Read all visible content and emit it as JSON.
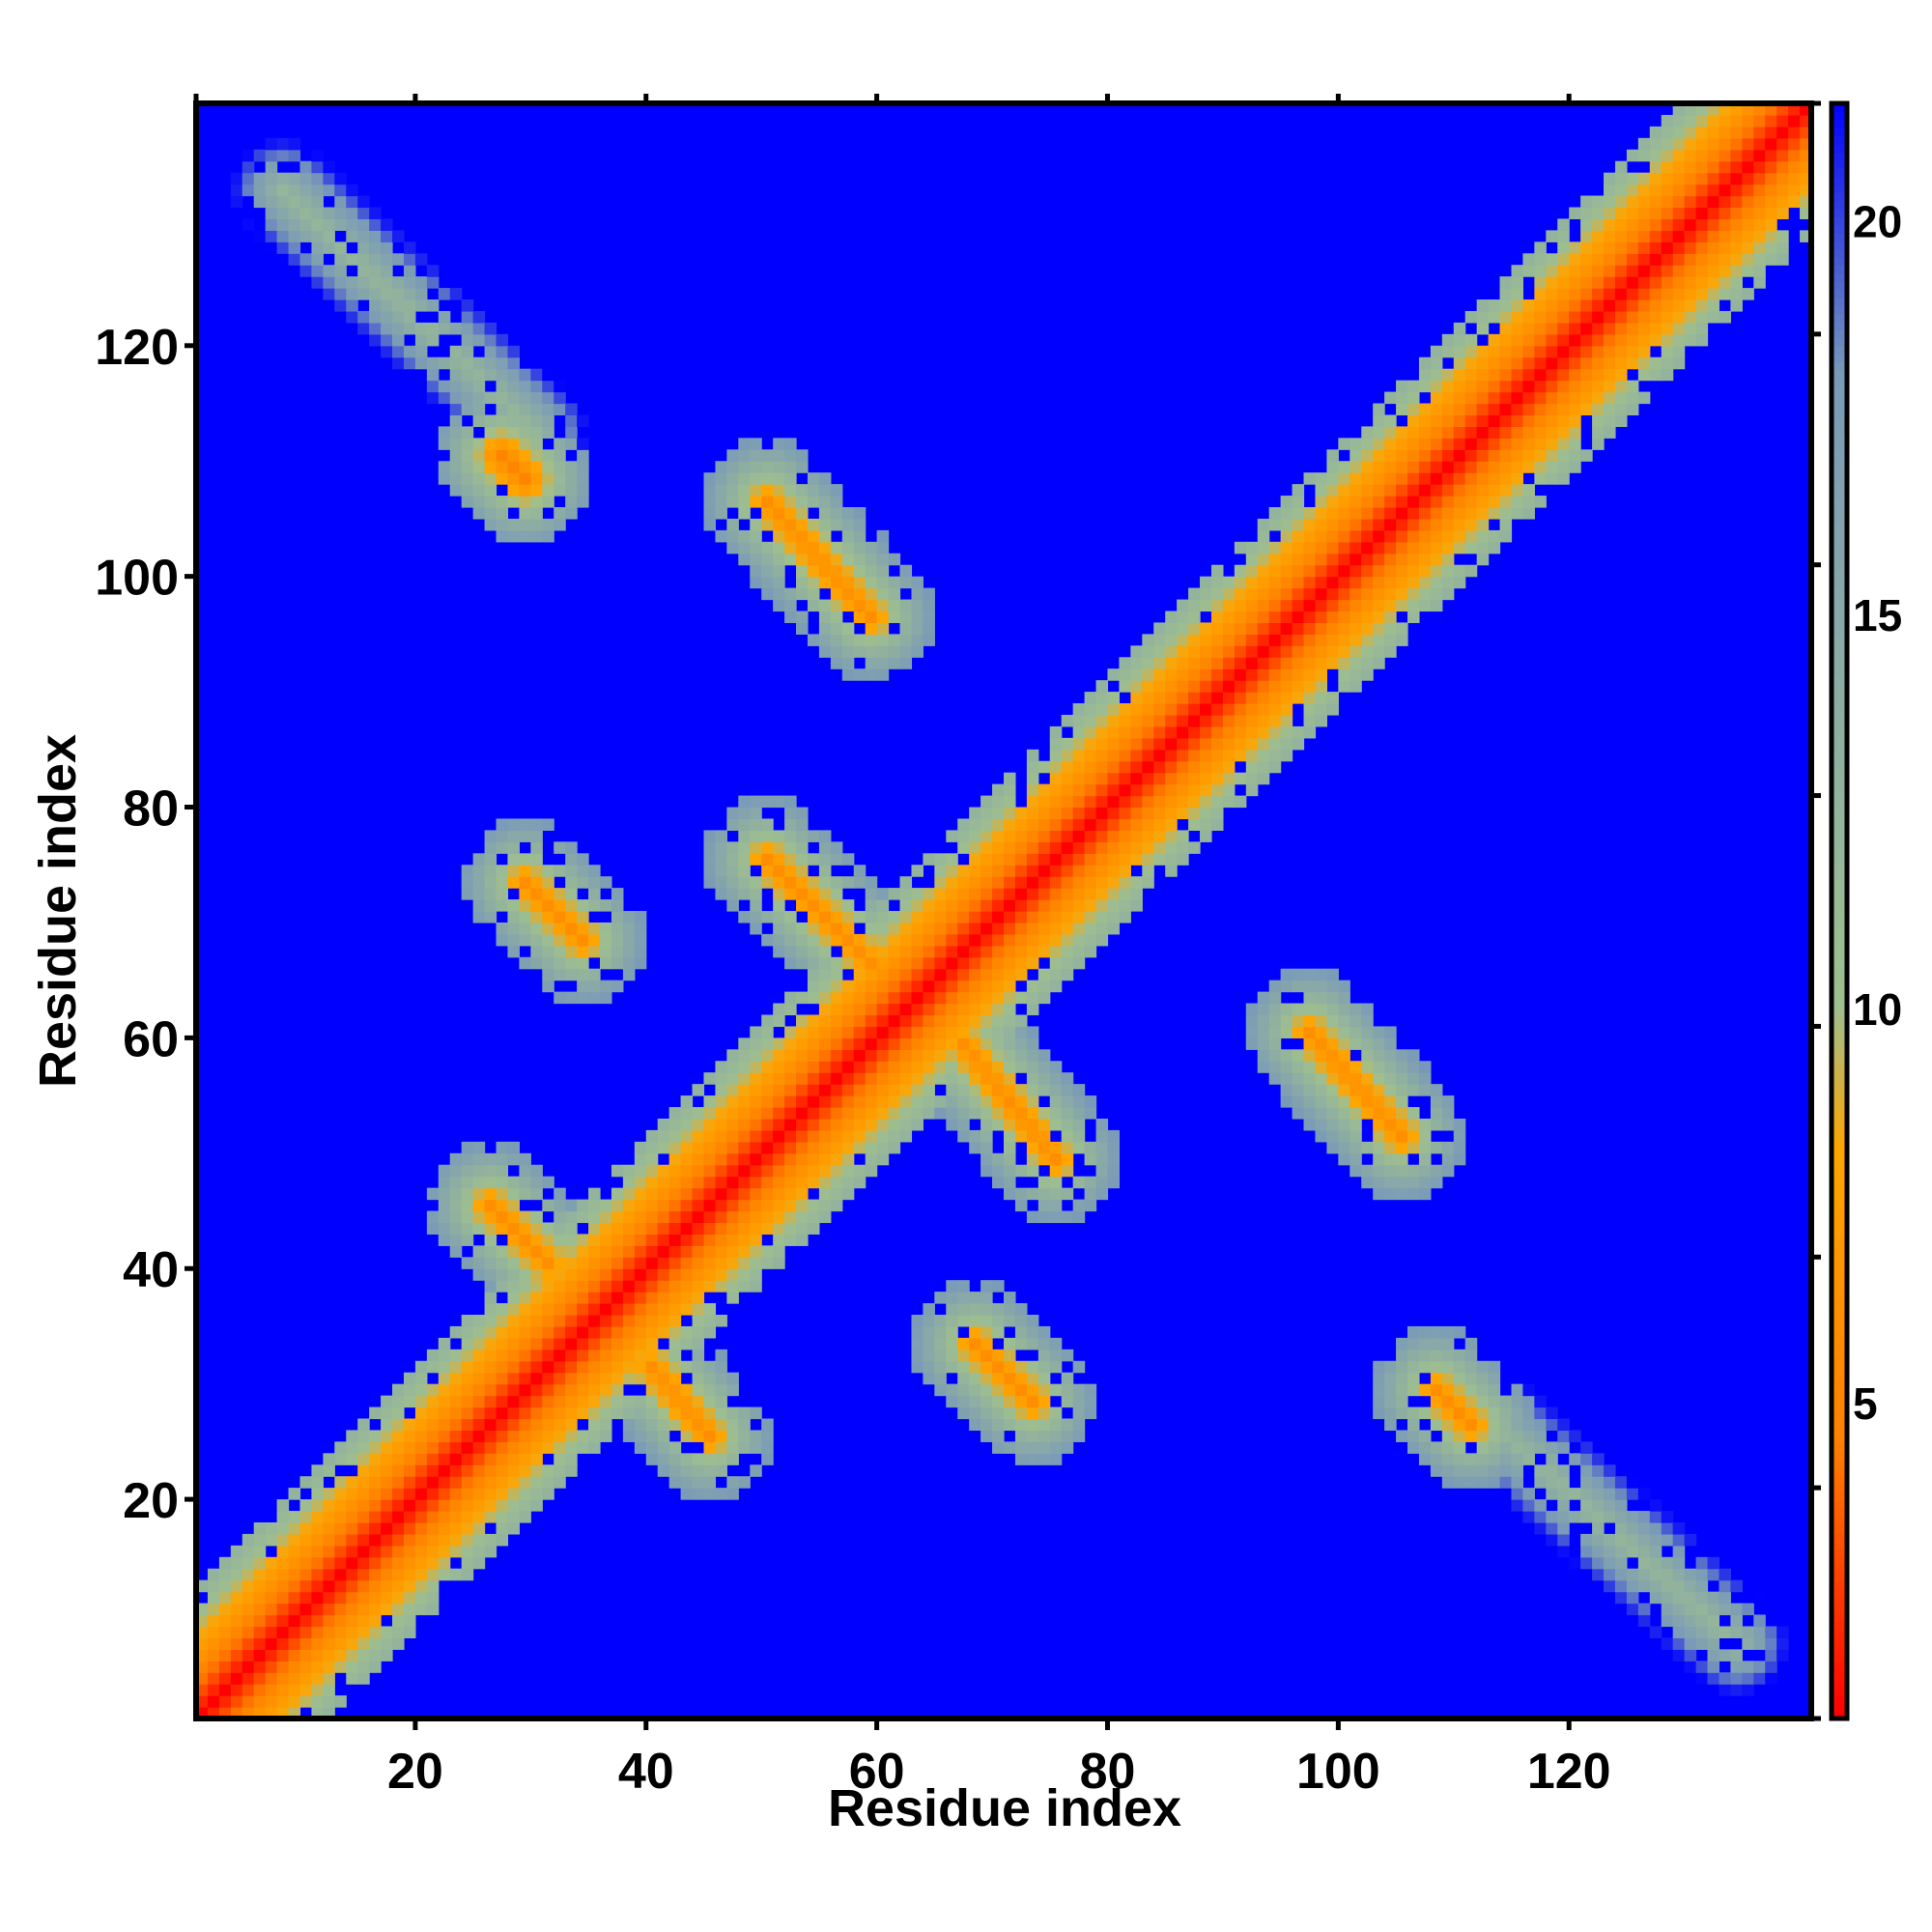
{
  "chart_data": {
    "type": "heatmap",
    "title": "",
    "xlabel": "Residue index",
    "ylabel": "Residue index",
    "xlim": [
      1,
      141
    ],
    "ylim": [
      1,
      141
    ],
    "x_ticks": [
      20,
      40,
      60,
      80,
      100,
      120
    ],
    "y_ticks": [
      20,
      40,
      60,
      80,
      100,
      120
    ],
    "colorbar": {
      "range": [
        1,
        21.5
      ],
      "ticks": [
        5,
        10,
        15,
        20
      ],
      "colors": [
        "#ff0000",
        "#ff8000",
        "#ffa500",
        "#9fbf8f",
        "#7a9ab8",
        "#0000ff"
      ],
      "stops": [
        1,
        4.5,
        8.2,
        10,
        18,
        21.5
      ]
    },
    "background_value": 21.5,
    "contact_bands": [
      {
        "kind": "diagonal",
        "note": "main diagonal, distance ~1"
      },
      {
        "kind": "segment",
        "x": [
          8,
          30
        ],
        "y": [
          133,
          112
        ],
        "peak": 12
      },
      {
        "kind": "segment",
        "x": [
          27,
          29
        ],
        "y": [
          110,
          108
        ],
        "peak": 5
      },
      {
        "kind": "segment",
        "x": [
          50,
          59
        ],
        "y": [
          106,
          96
        ],
        "peak": 6
      },
      {
        "kind": "segment",
        "x": [
          29,
          34
        ],
        "y": [
          73,
          68
        ],
        "peak": 6
      },
      {
        "kind": "segment",
        "x": [
          50,
          59
        ],
        "y": [
          75,
          66
        ],
        "peak": 6
      },
      {
        "kind": "segment",
        "x": [
          67,
          75
        ],
        "y": [
          59,
          49
        ],
        "peak": 6
      },
      {
        "kind": "segment",
        "x": [
          97,
          105
        ],
        "y": [
          60,
          51
        ],
        "peak": 6
      },
      {
        "kind": "segment",
        "x": [
          26,
          31
        ],
        "y": [
          45,
          40
        ],
        "peak": 6
      },
      {
        "kind": "segment",
        "x": [
          40,
          45
        ],
        "y": [
          31,
          25
        ],
        "peak": 6
      },
      {
        "kind": "segment",
        "x": [
          68,
          73
        ],
        "y": [
          33,
          28
        ],
        "peak": 6
      },
      {
        "kind": "segment",
        "x": [
          108,
          111
        ],
        "y": [
          29,
          26
        ],
        "peak": 6
      },
      {
        "kind": "segment",
        "x": [
          112,
          134
        ],
        "y": [
          27,
          7
        ],
        "peak": 12
      }
    ]
  }
}
